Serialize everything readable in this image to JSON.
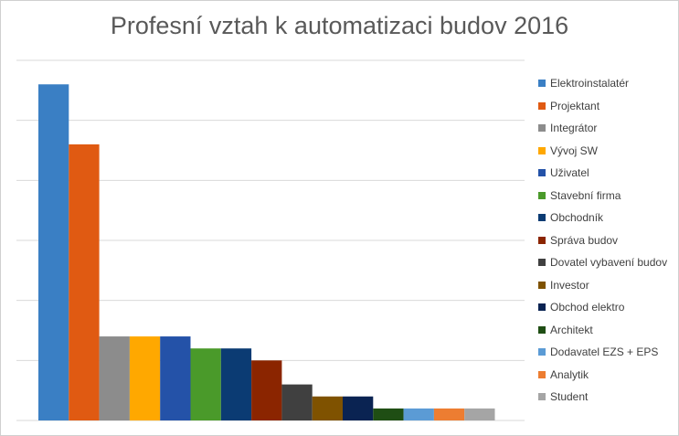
{
  "chart_data": {
    "type": "bar",
    "title": "Profesní vztah k automatizaci budov 2016",
    "xlabel": "",
    "ylabel": "",
    "ylim": [
      0,
      30
    ],
    "grid": true,
    "legend_placement": "right",
    "categories": [
      "Elektroinstalatér",
      "Projektant",
      "Integrátor",
      "Vývoj SW",
      "Uživatel",
      "Stavební firma",
      "Obchodník",
      "Správa budov",
      "Dovatel vybavení budov",
      "Investor",
      "Obchod elektro",
      "Architekt",
      "Dodavatel EZS + EPS",
      "Analytik",
      "Student"
    ],
    "values": [
      28,
      23,
      7,
      7,
      7,
      6,
      6,
      5,
      3,
      2,
      2,
      1,
      1,
      1,
      1
    ],
    "colors": [
      "#3A7FC4",
      "#E05A12",
      "#8C8C8C",
      "#FFA800",
      "#2452A8",
      "#4A9A2A",
      "#0B3B73",
      "#8B2500",
      "#404040",
      "#7F5200",
      "#0A2352",
      "#1F4E14",
      "#5B9BD5",
      "#ED7D31",
      "#A5A5A5"
    ]
  }
}
